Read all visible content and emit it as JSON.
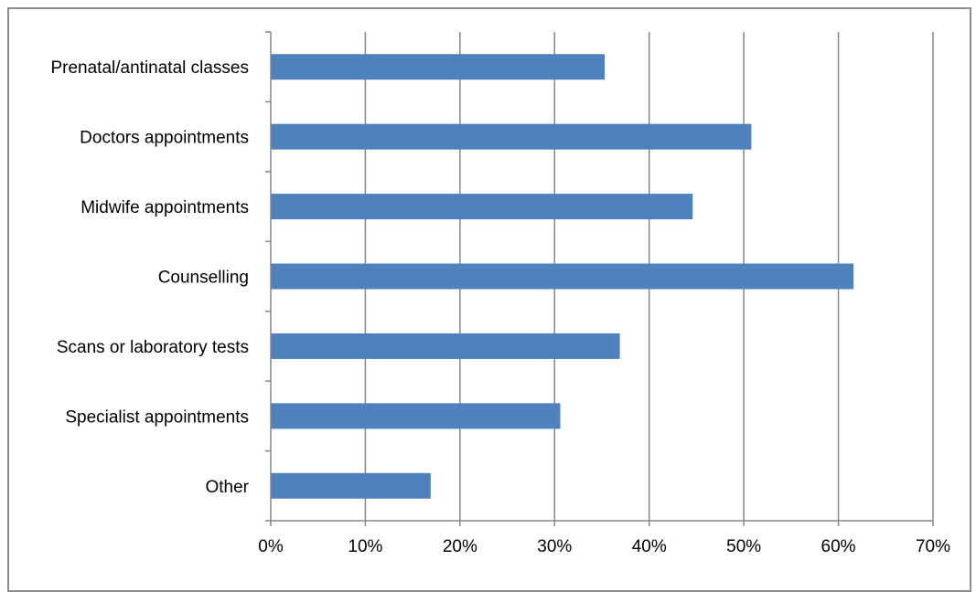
{
  "chart_data": {
    "type": "bar",
    "orientation": "horizontal",
    "categories": [
      "Prenatal/antinatal classes",
      "Doctors appointments",
      "Midwife appointments",
      "Counselling",
      "Scans or laboratory tests",
      "Specialist appointments",
      "Other"
    ],
    "values": [
      35.3,
      50.8,
      44.6,
      61.6,
      36.9,
      30.6,
      16.9
    ],
    "value_unit": "%",
    "xlim": [
      0,
      70
    ],
    "x_ticks": [
      "0%",
      "10%",
      "20%",
      "30%",
      "40%",
      "50%",
      "60%",
      "70%"
    ],
    "title": "",
    "xlabel": "",
    "ylabel": "",
    "grid": "vertical",
    "legend": "none",
    "bar_color": "#4f81bd",
    "grid_color": "#878787"
  }
}
